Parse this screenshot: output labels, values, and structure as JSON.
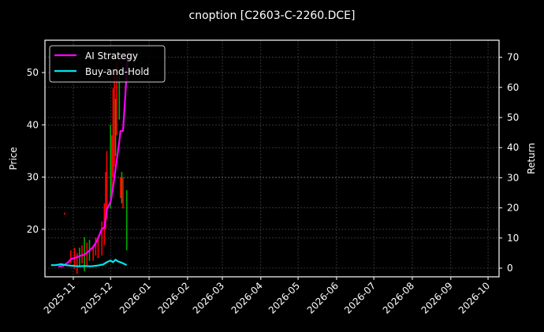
{
  "chart_data": {
    "type": "line",
    "title": "cnoption [C2603-C-2260.DCE]",
    "xlabel": "",
    "ylabel": "Price",
    "ylabel_right": "Return",
    "ylim": [
      11.5,
      56
    ],
    "ylim_right": [
      -2,
      75
    ],
    "grid": true,
    "legend_position": "upper left",
    "x_ticks": [
      "2025-11",
      "2025-12",
      "2026-01",
      "2026-02",
      "2026-03",
      "2026-04",
      "2026-05",
      "2026-06",
      "2026-07",
      "2026-08",
      "2026-09",
      "2026-10"
    ],
    "y_ticks": [
      20,
      30,
      40,
      50
    ],
    "y_ticks_right": [
      0,
      10,
      20,
      30,
      40,
      50,
      60,
      70
    ],
    "legend": [
      "AI Strategy",
      "Buy-and-Hold"
    ],
    "series": [
      {
        "name": "AI Strategy",
        "axis": "right",
        "color": "#ff00ff",
        "x": [
          "2025-10-20",
          "2025-10-24",
          "2025-10-28",
          "2025-10-30",
          "2025-11-03",
          "2025-11-06",
          "2025-11-10",
          "2025-11-13",
          "2025-11-17",
          "2025-11-20",
          "2025-11-24",
          "2025-11-26",
          "2025-11-28",
          "2025-12-01",
          "2025-12-03",
          "2025-12-05",
          "2025-12-08",
          "2025-12-09",
          "2025-12-11",
          "2025-12-13",
          "2025-12-15"
        ],
        "values": [
          0.5,
          0.8,
          2.0,
          3.0,
          3.5,
          4.0,
          4.5,
          5.5,
          7.0,
          9.0,
          13.0,
          13.5,
          19.5,
          22.0,
          27.0,
          33.0,
          42.0,
          45.5,
          45.5,
          58.0,
          72.0
        ]
      },
      {
        "name": "Buy-and-Hold",
        "axis": "right",
        "color": "#00e5ee",
        "x": [
          "2025-10-14",
          "2025-10-18",
          "2025-10-22",
          "2025-10-26",
          "2025-10-30",
          "2025-11-05",
          "2025-11-10",
          "2025-11-15",
          "2025-11-20",
          "2025-11-25",
          "2025-11-28",
          "2025-12-01",
          "2025-12-03",
          "2025-12-05",
          "2025-12-07",
          "2025-12-10",
          "2025-12-14"
        ],
        "values": [
          1.0,
          1.0,
          1.3,
          1.0,
          0.8,
          0.6,
          0.7,
          0.6,
          0.8,
          1.2,
          2.0,
          2.5,
          2.0,
          2.8,
          2.2,
          1.8,
          1.0
        ]
      }
    ],
    "candles": {
      "axis": "left",
      "up_color": "#00aa00",
      "down_color": "#ff0000",
      "items": [
        {
          "date": "2025-10-25",
          "low": 22.8,
          "high": 23.2,
          "dir": "down"
        },
        {
          "date": "2025-10-30",
          "low": 13.5,
          "high": 16.0,
          "dir": "down"
        },
        {
          "date": "2025-11-02",
          "low": 12.5,
          "high": 16.5,
          "dir": "down"
        },
        {
          "date": "2025-11-04",
          "low": 11.5,
          "high": 15.5,
          "dir": "down"
        },
        {
          "date": "2025-11-06",
          "low": 13.0,
          "high": 16.5,
          "dir": "up"
        },
        {
          "date": "2025-11-08",
          "low": 13.5,
          "high": 17.0,
          "dir": "down"
        },
        {
          "date": "2025-11-10",
          "low": 12.0,
          "high": 18.5,
          "dir": "up"
        },
        {
          "date": "2025-11-12",
          "low": 13.0,
          "high": 17.5,
          "dir": "down"
        },
        {
          "date": "2025-11-14",
          "low": 14.0,
          "high": 18.0,
          "dir": "up"
        },
        {
          "date": "2025-11-17",
          "low": 14.0,
          "high": 17.0,
          "dir": "down"
        },
        {
          "date": "2025-11-19",
          "low": 15.0,
          "high": 18.5,
          "dir": "down"
        },
        {
          "date": "2025-11-21",
          "low": 14.5,
          "high": 18.5,
          "dir": "down"
        },
        {
          "date": "2025-11-24",
          "low": 15.0,
          "high": 21.5,
          "dir": "down"
        },
        {
          "date": "2025-11-26",
          "low": 17.0,
          "high": 25.0,
          "dir": "down"
        },
        {
          "date": "2025-11-27",
          "low": 20.0,
          "high": 31.0,
          "dir": "down"
        },
        {
          "date": "2025-11-28",
          "low": 22.0,
          "high": 35.0,
          "dir": "down"
        },
        {
          "date": "2025-12-01",
          "low": 24.0,
          "high": 40.0,
          "dir": "up"
        },
        {
          "date": "2025-12-02",
          "low": 26.0,
          "high": 38.0,
          "dir": "down"
        },
        {
          "date": "2025-12-03",
          "low": 30.0,
          "high": 47.0,
          "dir": "down"
        },
        {
          "date": "2025-12-04",
          "low": 32.0,
          "high": 50.0,
          "dir": "down"
        },
        {
          "date": "2025-12-05",
          "low": 34.0,
          "high": 45.0,
          "dir": "up"
        },
        {
          "date": "2025-12-06",
          "low": 38.0,
          "high": 52.0,
          "dir": "down"
        },
        {
          "date": "2025-12-08",
          "low": 41.0,
          "high": 49.0,
          "dir": "up"
        },
        {
          "date": "2025-12-09",
          "low": 26.0,
          "high": 30.0,
          "dir": "down"
        },
        {
          "date": "2025-12-10",
          "low": 25.0,
          "high": 31.0,
          "dir": "up"
        },
        {
          "date": "2025-12-11",
          "low": 24.0,
          "high": 30.0,
          "dir": "down"
        },
        {
          "date": "2025-12-14",
          "low": 16.0,
          "high": 27.5,
          "dir": "up"
        }
      ]
    }
  }
}
